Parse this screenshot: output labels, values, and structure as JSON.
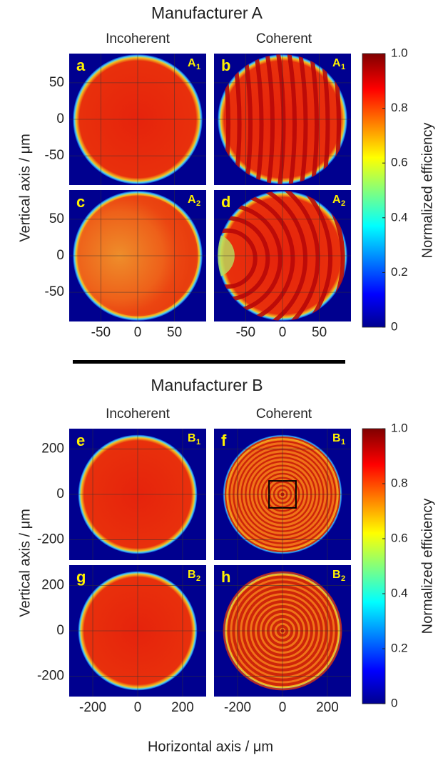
{
  "sections": [
    {
      "title": "Manufacturer A",
      "columns": [
        "Incoherent",
        "Coherent"
      ],
      "ylabel": "Vertical axis / μm",
      "xlim": [
        -93,
        93
      ],
      "ylim": [
        -90,
        90
      ],
      "xticks": [
        -50,
        0,
        50
      ],
      "yticks": [
        50,
        0,
        -50
      ],
      "panels": [
        {
          "letter": "a",
          "tag": "A",
          "tag_sub": "1"
        },
        {
          "letter": "b",
          "tag": "A",
          "tag_sub": "1"
        },
        {
          "letter": "c",
          "tag": "A",
          "tag_sub": "2"
        },
        {
          "letter": "d",
          "tag": "A",
          "tag_sub": "2"
        }
      ],
      "colorbar": {
        "label": "Normalized efficiency",
        "lim": [
          0,
          1
        ],
        "ticks": [
          {
            "value": 1,
            "label": "1.0"
          },
          0.8,
          0.6,
          0.4,
          0.2,
          0
        ]
      }
    },
    {
      "title": "Manufacturer B",
      "columns": [
        "Incoherent",
        "Coherent"
      ],
      "ylabel": "Vertical axis / μm",
      "xlim": [
        -305,
        305
      ],
      "ylim": [
        -290,
        290
      ],
      "xticks": [
        -200,
        0,
        200
      ],
      "yticks": [
        200,
        0,
        -200
      ],
      "panels": [
        {
          "letter": "e",
          "tag": "B",
          "tag_sub": "1"
        },
        {
          "letter": "f",
          "tag": "B",
          "tag_sub": "1"
        },
        {
          "letter": "g",
          "tag": "B",
          "tag_sub": "2"
        },
        {
          "letter": "h",
          "tag": "B",
          "tag_sub": "2"
        }
      ],
      "colorbar": {
        "label": "Normalized efficiency",
        "lim": [
          0,
          1
        ],
        "ticks": [
          {
            "value": 1,
            "label": "1.0"
          },
          0.8,
          0.6,
          0.4,
          0.2,
          0
        ]
      }
    }
  ],
  "xlabel": "Horizontal axis / μm"
}
